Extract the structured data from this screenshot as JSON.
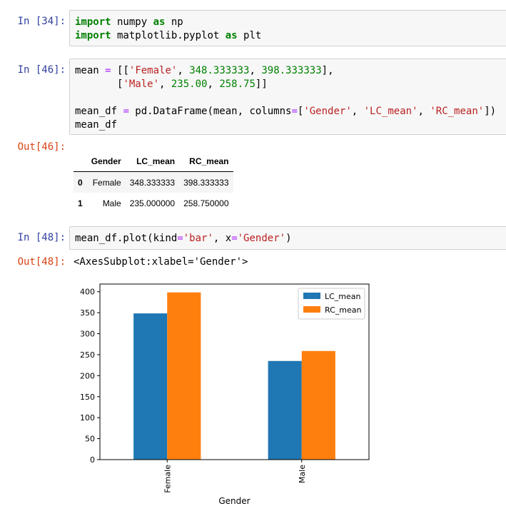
{
  "cells": {
    "c34": {
      "prompt": "In [34]:",
      "line1": [
        "import",
        " numpy ",
        "as",
        " np"
      ],
      "line2": [
        "import",
        " matplotlib.pyplot ",
        "as",
        " plt"
      ]
    },
    "c46": {
      "prompt": "In [46]:",
      "out_prompt": "Out[46]:",
      "l1": [
        "mean ",
        "=",
        " [[",
        "'Female'",
        ", ",
        "348.333333",
        ", ",
        "398.333333",
        "],"
      ],
      "l2": [
        "       [",
        "'Male'",
        ", ",
        "235.00",
        ", ",
        "258.75",
        "]]"
      ],
      "l3": [
        "mean_df ",
        "=",
        " pd.DataFrame(mean, columns",
        "=",
        "[",
        "'Gender'",
        ", ",
        "'LC_mean'",
        ", ",
        "'RC_mean'",
        "])"
      ],
      "l4": "mean_df"
    },
    "c48": {
      "prompt": "In [48]:",
      "out_prompt": "Out[48]:",
      "l1": [
        "mean_df.plot(kind",
        "=",
        "'bar'",
        ", x",
        "=",
        "'Gender'",
        ")"
      ],
      "output": "<AxesSubplot:xlabel='Gender'>"
    }
  },
  "dataframe": {
    "columns": [
      "",
      "Gender",
      "LC_mean",
      "RC_mean"
    ],
    "rows": [
      [
        "0",
        "Female",
        "348.333333",
        "398.333333"
      ],
      [
        "1",
        "Male",
        "235.000000",
        "258.750000"
      ]
    ]
  },
  "chart_data": {
    "type": "bar",
    "categories": [
      "Female",
      "Male"
    ],
    "series": [
      {
        "name": "LC_mean",
        "values": [
          348.333333,
          235.0
        ],
        "color": "#1f77b4"
      },
      {
        "name": "RC_mean",
        "values": [
          398.333333,
          258.75
        ],
        "color": "#ff7f0e"
      }
    ],
    "xlabel": "Gender",
    "ylabel": "",
    "ylim": [
      0,
      418.25
    ],
    "yticks": [
      0,
      50,
      100,
      150,
      200,
      250,
      300,
      350,
      400
    ],
    "legend": "top-right",
    "grid": false
  }
}
